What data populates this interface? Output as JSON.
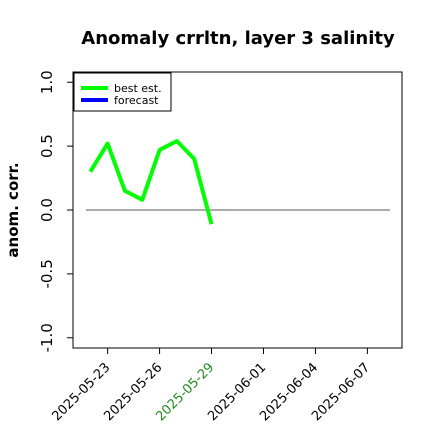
{
  "chart_data": {
    "type": "line",
    "title": "Anomaly crrltn, layer 3 salinity",
    "ylabel": "anom. corr.",
    "xlabel": "",
    "x_ticks": [
      "2025-05-23",
      "2025-05-26",
      "2025-05-29",
      "2025-06-01",
      "2025-06-04",
      "2025-06-07"
    ],
    "highlighted_tick": "2025-05-29",
    "highlight_color": "#228b22",
    "y_ticks": [
      "-1.0",
      "-0.5",
      "0.0",
      "0.5",
      "1.0"
    ],
    "xlim": [
      "2025-05-21",
      "2025-06-09"
    ],
    "ylim": [
      -1.08,
      1.08
    ],
    "grid": false,
    "reference_line": 0.0,
    "legend_position": "top-left",
    "series": [
      {
        "name": "best est.",
        "color": "#00ff00",
        "x": [
          "2025-05-22",
          "2025-05-23",
          "2025-05-24",
          "2025-05-25",
          "2025-05-26",
          "2025-05-27",
          "2025-05-28",
          "2025-05-29"
        ],
        "y": [
          0.3,
          0.52,
          0.15,
          0.08,
          0.47,
          0.54,
          0.4,
          -0.11
        ]
      },
      {
        "name": "forecast",
        "color": "#0000ff",
        "x": [],
        "y": []
      }
    ]
  }
}
